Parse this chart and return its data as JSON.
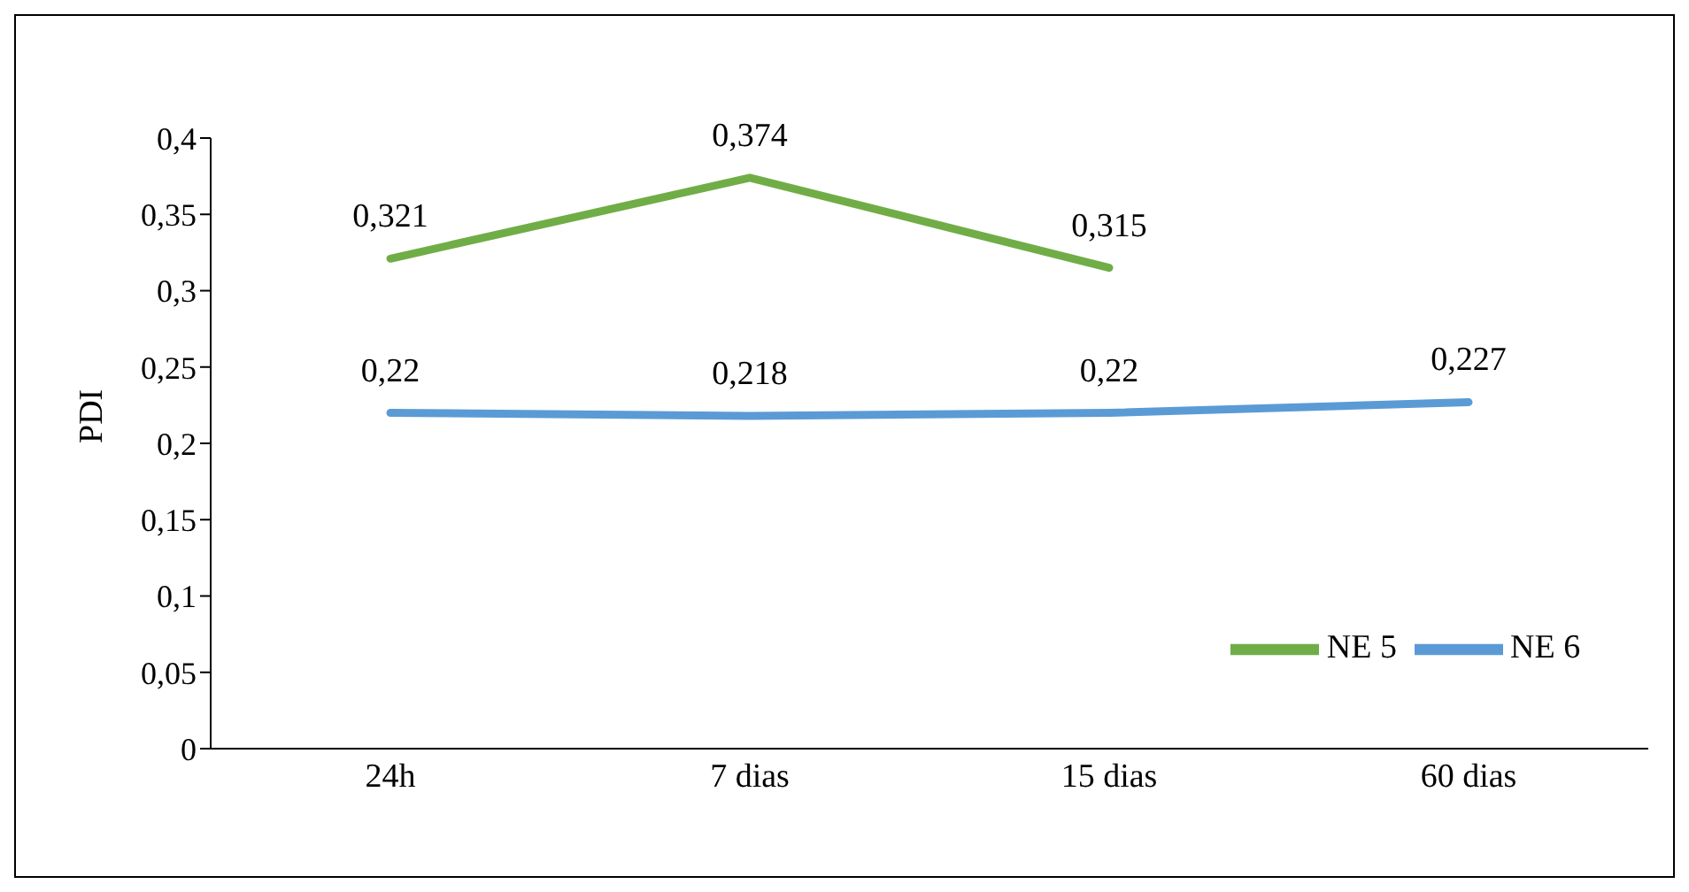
{
  "chart_data": {
    "type": "line",
    "ylabel": "PDI",
    "categories": [
      "24h",
      "7 dias",
      "15 dias",
      "60 dias"
    ],
    "series": [
      {
        "name": "NE 5",
        "color": "#70ad47",
        "values": [
          0.321,
          0.374,
          0.315,
          null
        ],
        "value_labels": [
          "0,321",
          "0,374",
          "0,315",
          null
        ]
      },
      {
        "name": "NE 6",
        "color": "#5b9bd5",
        "values": [
          0.22,
          0.218,
          0.22,
          0.227
        ],
        "value_labels": [
          "0,22",
          "0,218",
          "0,22",
          "0,227"
        ]
      }
    ],
    "ylim": [
      0,
      0.4
    ],
    "yticks": [
      0,
      {
        "value": 0.05,
        "label": "0,05"
      },
      {
        "value": 0.1,
        "label": "0,1"
      },
      {
        "value": 0.15,
        "label": "0,15"
      },
      {
        "value": 0.2,
        "label": "0,2"
      },
      {
        "value": 0.25,
        "label": "0,25"
      },
      {
        "value": 0.3,
        "label": "0,3"
      },
      {
        "value": 0.35,
        "label": "0,35"
      },
      {
        "value": 0.4,
        "label": "0,4"
      }
    ],
    "grid": false,
    "legend": "bottom right",
    "marker": "none",
    "line_style": "solid"
  }
}
